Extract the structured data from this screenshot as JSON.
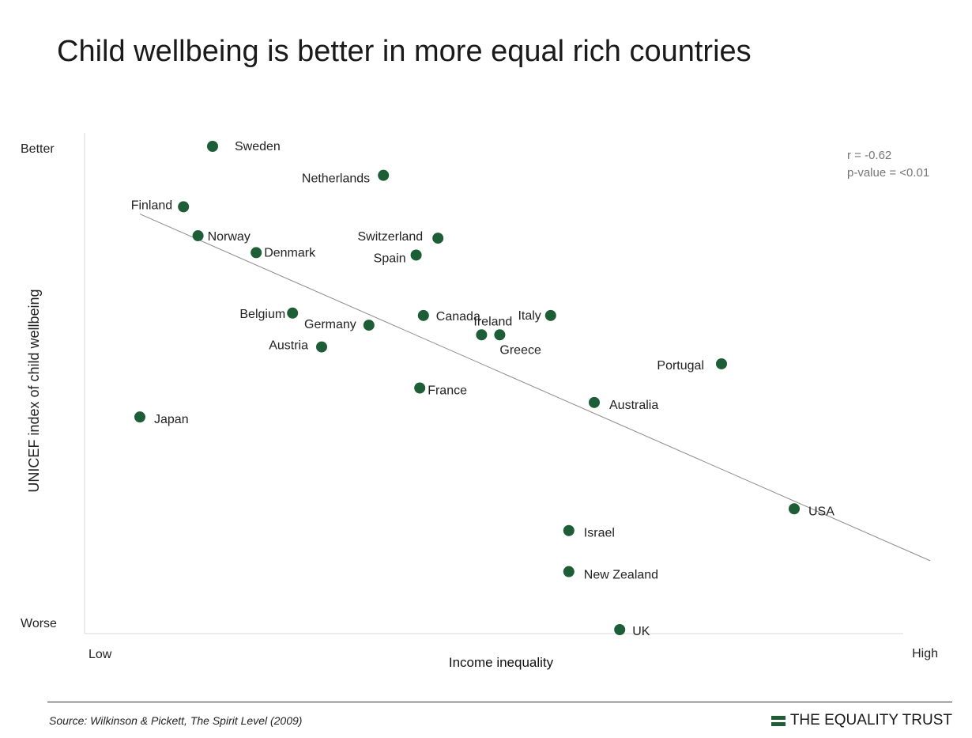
{
  "page": {
    "title": "Child wellbeing is better in more equal rich countries",
    "source": "Source: Wilkinson & Pickett, The Spirit Level (2009)",
    "logo_text": "THE EQUALITY TRUST",
    "brand_color": "#1e5e36"
  },
  "chart_data": {
    "type": "scatter",
    "xlabel": "Income inequality",
    "ylabel": "UNICEF index of child wellbeing",
    "x_tick_labels": [
      "Low",
      "High"
    ],
    "y_tick_labels": [
      "Better",
      "Worse"
    ],
    "xlim": [
      0,
      100
    ],
    "ylim": [
      0,
      100
    ],
    "stats": {
      "r": "r = -0.62",
      "p": "p-value = <0.01"
    },
    "trendline": {
      "x": [
        0,
        100
      ],
      "y": [
        86,
        20
      ]
    },
    "point_color": "#1e5e36",
    "points": [
      {
        "label": "Sweden",
        "x": 10,
        "y": 100
      },
      {
        "label": "Netherlands",
        "x": 33.5,
        "y": 94
      },
      {
        "label": "Finland",
        "x": 6,
        "y": 87.5
      },
      {
        "label": "Norway",
        "x": 8,
        "y": 81.5
      },
      {
        "label": "Denmark",
        "x": 16,
        "y": 78
      },
      {
        "label": "Switzerland",
        "x": 41,
        "y": 81
      },
      {
        "label": "Spain",
        "x": 38,
        "y": 77.5
      },
      {
        "label": "Belgium",
        "x": 21,
        "y": 65.5
      },
      {
        "label": "Germany",
        "x": 31.5,
        "y": 63
      },
      {
        "label": "Austria",
        "x": 25,
        "y": 58.5
      },
      {
        "label": "Canada",
        "x": 39,
        "y": 65
      },
      {
        "label": "Italy",
        "x": 56.5,
        "y": 65
      },
      {
        "label": "Ireland",
        "x": 47,
        "y": 61
      },
      {
        "label": "Greece",
        "x": 49.5,
        "y": 61
      },
      {
        "label": "France",
        "x": 38.5,
        "y": 50
      },
      {
        "label": "Portugal",
        "x": 80,
        "y": 55
      },
      {
        "label": "Australia",
        "x": 62.5,
        "y": 47
      },
      {
        "label": "Japan",
        "x": 0,
        "y": 44
      },
      {
        "label": "USA",
        "x": 90,
        "y": 25
      },
      {
        "label": "Israel",
        "x": 59,
        "y": 20.5
      },
      {
        "label": "New Zealand",
        "x": 59,
        "y": 12
      },
      {
        "label": "UK",
        "x": 66,
        "y": 0
      }
    ]
  }
}
